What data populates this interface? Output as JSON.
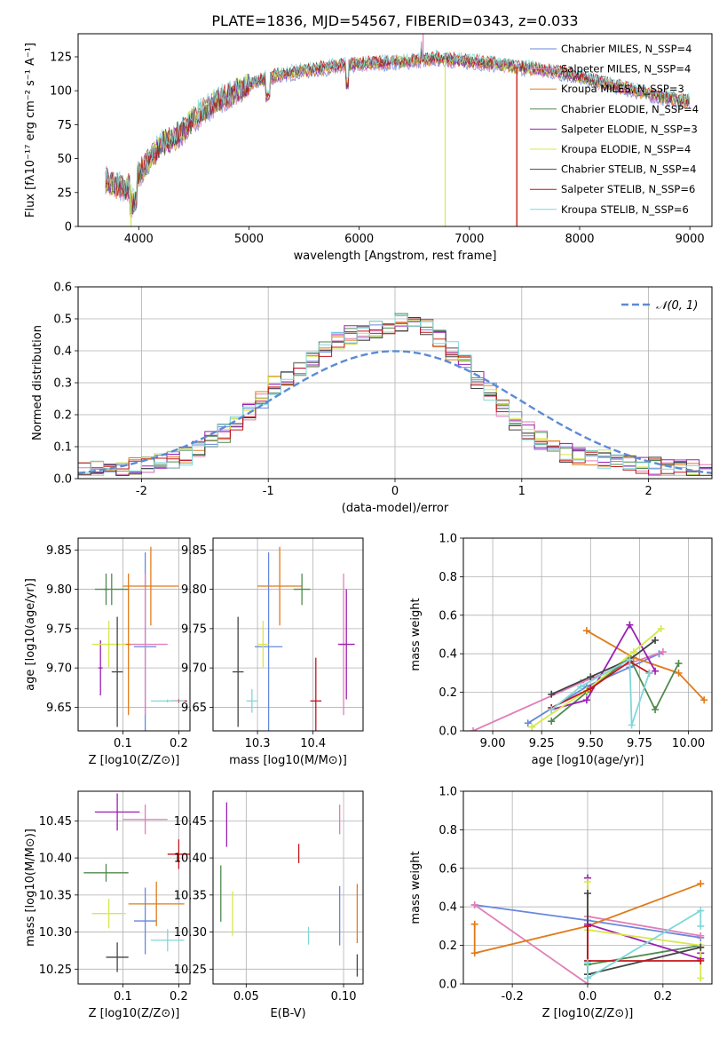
{
  "figure_title": "PLATE=1836, MJD=54567, FIBERID=0343, z=0.033",
  "chart_data": [
    {
      "id": "spectrum",
      "type": "line",
      "xlabel": "wavelength [Angstrom, rest frame]",
      "ylabel": "Flux [fλ10⁻¹⁷ erg cm⁻² s⁻¹ A⁻¹]",
      "xlim": [
        3450,
        9200
      ],
      "ylim": [
        0,
        142
      ],
      "xticks": [
        4000,
        5000,
        6000,
        7000,
        8000,
        9000
      ],
      "yticks": [
        0,
        25,
        50,
        75,
        100,
        125
      ],
      "legend": "top-right",
      "grid": false,
      "observed_trend": {
        "x": [
          3700,
          3800,
          3900,
          4000,
          4100,
          4200,
          4300,
          4400,
          4500,
          4700,
          4900,
          5100,
          5300,
          5500,
          5700,
          5900,
          6100,
          6300,
          6500,
          6700,
          6900,
          7100,
          7300,
          7500,
          7700,
          7900,
          8100,
          8300,
          8500,
          8700,
          8900,
          9000
        ],
        "y": [
          35,
          30,
          28,
          38,
          50,
          60,
          64,
          70,
          80,
          92,
          100,
          108,
          112,
          115,
          117,
          119,
          120,
          121,
          122,
          124,
          122,
          121,
          119,
          117,
          115,
          112,
          108,
          104,
          100,
          96,
          93,
          92
        ]
      },
      "series": [
        {
          "name": "Chabrier MILES, N_SSP=4",
          "color": "#6688dd"
        },
        {
          "name": "Salpeter MILES, N_SSP=4",
          "color": "#e07fb8"
        },
        {
          "name": "Kroupa MILES, N_SSP=3",
          "color": "#e07b1a"
        },
        {
          "name": "Chabrier ELODIE, N_SSP=4",
          "color": "#4f8a4f"
        },
        {
          "name": "Salpeter ELODIE, N_SSP=3",
          "color": "#9b1fb5"
        },
        {
          "name": "Kroupa ELODIE, N_SSP=4",
          "color": "#d6e84a"
        },
        {
          "name": "Chabrier STELIB, N_SSP=4",
          "color": "#444444"
        },
        {
          "name": "Salpeter STELIB, N_SSP=6",
          "color": "#c4161c"
        },
        {
          "name": "Kroupa STELIB, N_SSP=6",
          "color": "#7fd8d8"
        }
      ],
      "dropouts": [
        {
          "series": 5,
          "x": 3930,
          "y": 0
        },
        {
          "series": 5,
          "x": 6780,
          "y": 0
        },
        {
          "series": 2,
          "x": 7430,
          "y": 0
        },
        {
          "series": 7,
          "x": 7430,
          "y": 0
        },
        {
          "series": 1,
          "x": 6580,
          "y": 142
        }
      ]
    },
    {
      "id": "residuals",
      "type": "line",
      "xlabel": "(data-model)/error",
      "ylabel": "Normed distribution",
      "xlim": [
        -2.5,
        2.5
      ],
      "ylim": [
        0,
        0.6
      ],
      "xticks": [
        -2,
        -1,
        0,
        1,
        2
      ],
      "yticks": [
        0.0,
        0.1,
        0.2,
        0.3,
        0.4,
        0.5,
        0.6
      ],
      "grid": true,
      "legend": "top-right",
      "gaussian_label": "𝒩(0, 1)",
      "gaussian_color": "#5b8bd6",
      "bin_width": 0.1,
      "base_profile": [
        0.03,
        0.03,
        0.03,
        0.03,
        0.04,
        0.04,
        0.05,
        0.06,
        0.07,
        0.09,
        0.12,
        0.14,
        0.17,
        0.21,
        0.25,
        0.29,
        0.32,
        0.35,
        0.38,
        0.41,
        0.43,
        0.45,
        0.46,
        0.47,
        0.48,
        0.49,
        0.48,
        0.47,
        0.44,
        0.4,
        0.36,
        0.31,
        0.27,
        0.22,
        0.18,
        0.15,
        0.12,
        0.1,
        0.08,
        0.07,
        0.06,
        0.06,
        0.05,
        0.05,
        0.04,
        0.04,
        0.03,
        0.03,
        0.03,
        0.02
      ]
    },
    {
      "id": "age-vs-Z",
      "type": "scatter",
      "xlabel": "Z [log10(Z/Z⊙)]",
      "ylabel": "age  [log10(age/yr)]",
      "xlim": [
        0.02,
        0.22
      ],
      "ylim": [
        9.62,
        9.865
      ],
      "xticks": [
        0.1,
        0.2
      ],
      "yticks": [
        9.65,
        9.7,
        9.75,
        9.8,
        9.85
      ],
      "grid": true,
      "points": [
        {
          "series": 0,
          "x": 0.14,
          "y": 9.727,
          "xerr": 0.02,
          "yerr": 0.12
        },
        {
          "series": 1,
          "x": 0.14,
          "y": 9.73,
          "xerr": 0.04,
          "yerr": 0.09
        },
        {
          "series": 2,
          "x": 0.15,
          "y": 9.804,
          "xerr": 0.05,
          "yerr": 0.05
        },
        {
          "series": 2,
          "x": 0.11,
          "y": 9.73,
          "xerr": 0.004,
          "yerr": 0.09
        },
        {
          "series": 3,
          "x": 0.08,
          "y": 9.8,
          "xerr": 0.03,
          "yerr": 0.02
        },
        {
          "series": 3,
          "x": 0.07,
          "y": 9.8,
          "xerr": 0.004,
          "yerr": 0.02
        },
        {
          "series": 4,
          "x": 0.06,
          "y": 9.7,
          "xerr": 0.004,
          "yerr": 0.035
        },
        {
          "series": 5,
          "x": 0.075,
          "y": 9.73,
          "xerr": 0.03,
          "yerr": 0.03
        },
        {
          "series": 6,
          "x": 0.09,
          "y": 9.695,
          "xerr": 0.01,
          "yerr": 0.07
        },
        {
          "series": 7,
          "x": 0.2,
          "y": 9.658,
          "xerr": 0.015,
          "yerr": 0.002
        },
        {
          "series": 8,
          "x": 0.18,
          "y": 9.658,
          "xerr": 0.03,
          "yerr": 0.002
        }
      ]
    },
    {
      "id": "age-vs-mass",
      "type": "scatter",
      "xlabel": "mass [log10(M/M⊙)]",
      "ylabel": "",
      "xlim": [
        10.22,
        10.49
      ],
      "ylim": [
        9.62,
        9.865
      ],
      "xticks": [
        10.3,
        10.4
      ],
      "yticks": [
        9.65,
        9.7,
        9.75,
        9.8,
        9.85
      ],
      "grid": true,
      "points": [
        {
          "series": 0,
          "x": 10.32,
          "y": 9.727,
          "xerr": 0.025,
          "yerr": 0.12
        },
        {
          "series": 1,
          "x": 10.455,
          "y": 9.73,
          "xerr": 0.005,
          "yerr": 0.09
        },
        {
          "series": 2,
          "x": 10.34,
          "y": 9.804,
          "xerr": 0.04,
          "yerr": 0.05
        },
        {
          "series": 3,
          "x": 10.38,
          "y": 9.8,
          "xerr": 0.015,
          "yerr": 0.02
        },
        {
          "series": 4,
          "x": 10.46,
          "y": 9.73,
          "xerr": 0.015,
          "yerr": 0.07
        },
        {
          "series": 5,
          "x": 10.31,
          "y": 9.73,
          "xerr": 0.01,
          "yerr": 0.03
        },
        {
          "series": 6,
          "x": 10.265,
          "y": 9.695,
          "xerr": 0.01,
          "yerr": 0.07
        },
        {
          "series": 7,
          "x": 10.405,
          "y": 9.658,
          "xerr": 0.01,
          "yerr": 0.055
        },
        {
          "series": 8,
          "x": 10.29,
          "y": 9.658,
          "xerr": 0.01,
          "yerr": 0.015
        }
      ]
    },
    {
      "id": "weight-vs-age",
      "type": "line",
      "xlabel": "age  [log10(age/yr)]",
      "ylabel": "mass weight",
      "xlim": [
        8.85,
        10.12
      ],
      "ylim": [
        0,
        1.0
      ],
      "xticks": [
        9.0,
        9.25,
        9.5,
        9.75,
        10.0
      ],
      "yticks": [
        0.0,
        0.2,
        0.4,
        0.6,
        0.8,
        1.0
      ],
      "grid": true,
      "series": [
        {
          "series": 0,
          "x": [
            9.18,
            9.48,
            9.7,
            9.85
          ],
          "y": [
            0.04,
            0.23,
            0.33,
            0.4
          ]
        },
        {
          "series": 1,
          "x": [
            8.9,
            9.45,
            9.7,
            9.87
          ],
          "y": [
            0.0,
            0.25,
            0.35,
            0.41
          ]
        },
        {
          "series": 2,
          "x": [
            9.48,
            9.72,
            9.95,
            10.08
          ],
          "y": [
            0.52,
            0.38,
            0.3,
            0.16
          ]
        },
        {
          "series": 3,
          "x": [
            9.3,
            9.48,
            9.7,
            9.83,
            9.95
          ],
          "y": [
            0.05,
            0.2,
            0.38,
            0.11,
            0.35
          ]
        },
        {
          "series": 4,
          "x": [
            9.3,
            9.48,
            9.7,
            9.83
          ],
          "y": [
            0.11,
            0.16,
            0.55,
            0.31
          ]
        },
        {
          "series": 5,
          "x": [
            9.2,
            9.48,
            9.72,
            9.86
          ],
          "y": [
            0.02,
            0.21,
            0.41,
            0.53
          ]
        },
        {
          "series": 6,
          "x": [
            9.3,
            9.5,
            9.7,
            9.83
          ],
          "y": [
            0.19,
            0.28,
            0.37,
            0.47
          ]
        },
        {
          "series": 7,
          "x": [
            9.3,
            9.5,
            9.7,
            9.8
          ],
          "y": [
            0.12,
            0.22,
            0.36,
            0.3
          ]
        },
        {
          "series": 8,
          "x": [
            9.3,
            9.45,
            9.7,
            9.71,
            9.8
          ],
          "y": [
            0.11,
            0.23,
            0.37,
            0.03,
            0.3
          ]
        }
      ]
    },
    {
      "id": "mass-vs-Z",
      "type": "scatter",
      "xlabel": "Z [log10(Z/Z⊙)]",
      "ylabel": "mass [log10(M/M⊙)]",
      "xlim": [
        0.02,
        0.22
      ],
      "ylim": [
        10.23,
        10.49
      ],
      "xticks": [
        0.1,
        0.2
      ],
      "yticks": [
        10.25,
        10.3,
        10.35,
        10.4,
        10.45
      ],
      "grid": true,
      "points": [
        {
          "series": 0,
          "x": 0.14,
          "y": 10.315,
          "xerr": 0.02,
          "yerr": 0.045
        },
        {
          "series": 1,
          "x": 0.14,
          "y": 10.452,
          "xerr": 0.04,
          "yerr": 0.02
        },
        {
          "series": 2,
          "x": 0.16,
          "y": 10.338,
          "xerr": 0.05,
          "yerr": 0.03
        },
        {
          "series": 3,
          "x": 0.07,
          "y": 10.38,
          "xerr": 0.04,
          "yerr": 0.012
        },
        {
          "series": 4,
          "x": 0.09,
          "y": 10.462,
          "xerr": 0.04,
          "yerr": 0.025
        },
        {
          "series": 5,
          "x": 0.075,
          "y": 10.325,
          "xerr": 0.03,
          "yerr": 0.02
        },
        {
          "series": 6,
          "x": 0.09,
          "y": 10.266,
          "xerr": 0.02,
          "yerr": 0.02
        },
        {
          "series": 7,
          "x": 0.2,
          "y": 10.405,
          "xerr": 0.02,
          "yerr": 0.02
        },
        {
          "series": 8,
          "x": 0.18,
          "y": 10.289,
          "xerr": 0.03,
          "yerr": 0.015
        }
      ]
    },
    {
      "id": "mass-vs-EBV",
      "type": "scatter",
      "xlabel": "E(B-V)",
      "ylabel": "",
      "xlim": [
        0.033,
        0.11
      ],
      "ylim": [
        10.23,
        10.49
      ],
      "xticks": [
        0.05,
        0.1
      ],
      "yticks": [
        10.25,
        10.3,
        10.35,
        10.4,
        10.45
      ],
      "grid": true,
      "points": [
        {
          "series": 0,
          "x": 0.098,
          "y": 10.322,
          "yerr": 0.04
        },
        {
          "series": 1,
          "x": 0.098,
          "y": 10.452,
          "yerr": 0.02
        },
        {
          "series": 2,
          "x": 0.107,
          "y": 10.325,
          "yerr": 0.04
        },
        {
          "series": 3,
          "x": 0.037,
          "y": 10.352,
          "yerr": 0.038
        },
        {
          "series": 4,
          "x": 0.04,
          "y": 10.445,
          "yerr": 0.03
        },
        {
          "series": 5,
          "x": 0.043,
          "y": 10.325,
          "yerr": 0.03
        },
        {
          "series": 6,
          "x": 0.107,
          "y": 10.255,
          "yerr": 0.015
        },
        {
          "series": 7,
          "x": 0.077,
          "y": 10.406,
          "yerr": 0.013
        },
        {
          "series": 8,
          "x": 0.082,
          "y": 10.295,
          "yerr": 0.012
        }
      ]
    },
    {
      "id": "weight-vs-Z",
      "type": "line",
      "xlabel": "Z [log10(Z/Z⊙)]",
      "ylabel": "mass weight",
      "xlim": [
        -0.33,
        0.33
      ],
      "ylim": [
        0,
        1.0
      ],
      "xticks": [
        -0.2,
        0.0,
        0.2
      ],
      "yticks": [
        0.0,
        0.2,
        0.4,
        0.6,
        0.8,
        1.0
      ],
      "grid": true,
      "series": [
        {
          "series": 0,
          "x": [
            -0.3,
            0.0,
            0.3
          ],
          "y": [
            0.41,
            0.33,
            0.24
          ]
        },
        {
          "series": 1,
          "x": [
            -0.3,
            0.0,
            0.0,
            0.3
          ],
          "y": [
            0.41,
            0.0,
            0.35,
            0.25
          ]
        },
        {
          "series": 2,
          "x": [
            -0.3,
            -0.3,
            0.0,
            0.3
          ],
          "y": [
            0.31,
            0.16,
            0.3,
            0.52
          ]
        },
        {
          "series": 3,
          "x": [
            0.0,
            0.3
          ],
          "y": [
            0.1,
            0.2
          ]
        },
        {
          "series": 4,
          "x": [
            0.0,
            0.0,
            0.3,
            0.3
          ],
          "y": [
            0.55,
            0.31,
            0.13,
            0.16
          ]
        },
        {
          "series": 5,
          "x": [
            0.0,
            0.0,
            0.3,
            0.3
          ],
          "y": [
            0.53,
            0.28,
            0.2,
            0.03
          ]
        },
        {
          "series": 6,
          "x": [
            0.0,
            0.0,
            0.3
          ],
          "y": [
            0.47,
            0.05,
            0.19
          ]
        },
        {
          "series": 7,
          "x": [
            0.0,
            0.0,
            0.3
          ],
          "y": [
            0.3,
            0.12,
            0.12
          ]
        },
        {
          "series": 8,
          "x": [
            0.0,
            0.0,
            0.3,
            0.3
          ],
          "y": [
            0.11,
            0.03,
            0.38,
            0.3
          ]
        }
      ]
    }
  ]
}
